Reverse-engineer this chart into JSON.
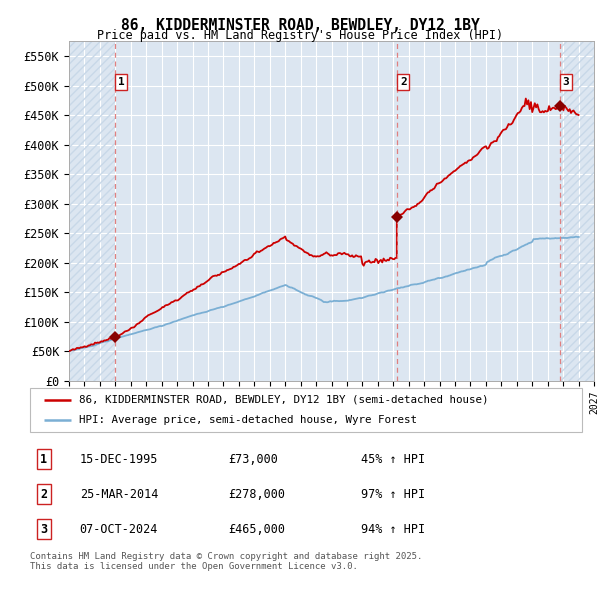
{
  "title": "86, KIDDERMINSTER ROAD, BEWDLEY, DY12 1BY",
  "subtitle": "Price paid vs. HM Land Registry's House Price Index (HPI)",
  "property_label": "86, KIDDERMINSTER ROAD, BEWDLEY, DY12 1BY (semi-detached house)",
  "hpi_label": "HPI: Average price, semi-detached house, Wyre Forest",
  "transactions": [
    {
      "num": 1,
      "date": "15-DEC-1995",
      "price": 73000,
      "hpi_pct": "45% ↑ HPI",
      "year": 1995.95
    },
    {
      "num": 2,
      "date": "25-MAR-2014",
      "price": 278000,
      "hpi_pct": "97% ↑ HPI",
      "year": 2014.23
    },
    {
      "num": 3,
      "date": "07-OCT-2024",
      "price": 465000,
      "hpi_pct": "94% ↑ HPI",
      "year": 2024.77
    }
  ],
  "footer": "Contains HM Land Registry data © Crown copyright and database right 2025.\nThis data is licensed under the Open Government Licence v3.0.",
  "ylim": [
    0,
    575000
  ],
  "yticks": [
    0,
    50000,
    100000,
    150000,
    200000,
    250000,
    300000,
    350000,
    400000,
    450000,
    500000,
    550000
  ],
  "ytick_labels": [
    "£0",
    "£50K",
    "£100K",
    "£150K",
    "£200K",
    "£250K",
    "£300K",
    "£350K",
    "£400K",
    "£450K",
    "£500K",
    "£550K"
  ],
  "xlim": [
    1993,
    2027
  ],
  "plot_bg_color": "#dce6f1",
  "hatch_color": "#c8d8e8",
  "grid_color": "#ffffff",
  "property_line_color": "#cc0000",
  "hpi_line_color": "#7bafd4",
  "vline_color": "#e08080",
  "marker_color": "#880000",
  "label_box_color": "#cc2222"
}
